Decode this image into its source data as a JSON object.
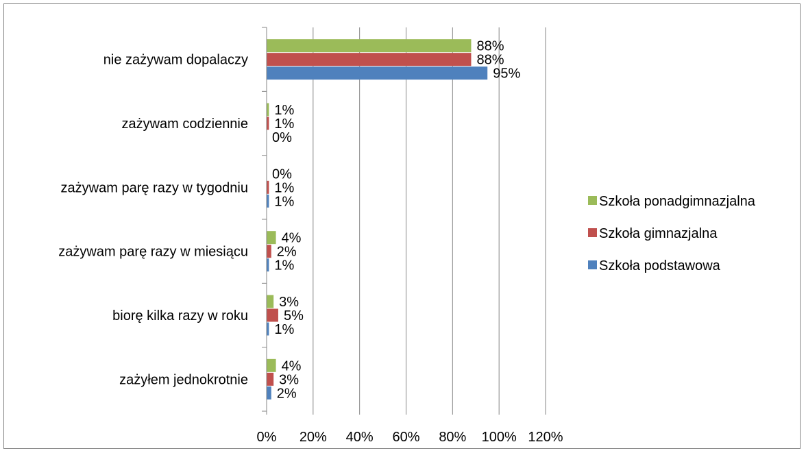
{
  "chart_data": {
    "type": "bar",
    "orientation": "horizontal",
    "categories": [
      "nie zażywam dopalaczy",
      "zażywam codziennie",
      "zażywam parę razy w tygodniu",
      "zażywam parę razy w miesiącu",
      "biorę kilka razy w roku",
      "zażyłem jednokrotnie"
    ],
    "series": [
      {
        "name": "Szkoła ponadgimnazjalna",
        "color": "#9BBB59",
        "values": [
          88,
          1,
          0,
          4,
          3,
          4
        ],
        "labels": [
          "88%",
          "1%",
          "0%",
          "4%",
          "3%",
          "4%"
        ]
      },
      {
        "name": "Szkoła gimnazjalna",
        "color": "#C0504D",
        "values": [
          88,
          1,
          1,
          2,
          5,
          3
        ],
        "labels": [
          "88%",
          "1%",
          "1%",
          "2%",
          "5%",
          "3%"
        ]
      },
      {
        "name": "Szkoła podstawowa",
        "color": "#4F81BD",
        "values": [
          95,
          0,
          1,
          1,
          1,
          2
        ],
        "labels": [
          "95%",
          "0%",
          "1%",
          "1%",
          "1%",
          "2%"
        ]
      }
    ],
    "xlim": [
      0,
      120
    ],
    "x_ticks": [
      "0%",
      "20%",
      "40%",
      "60%",
      "80%",
      "100%",
      "120%"
    ],
    "grid": true,
    "legend_position": "right",
    "title": "",
    "xlabel": "",
    "ylabel": ""
  }
}
